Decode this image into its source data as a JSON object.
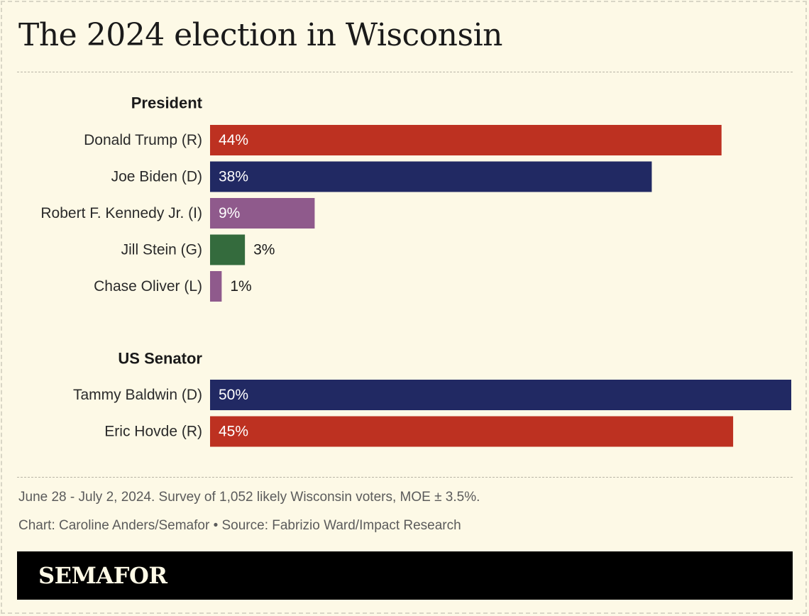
{
  "title": "The 2024 election in Wisconsin",
  "chart_data": {
    "type": "bar",
    "orientation": "horizontal",
    "unit": "%",
    "xlim": [
      0,
      50
    ],
    "grid": false,
    "groups": [
      {
        "heading": "President",
        "bars": [
          {
            "label": "Donald Trump (R)",
            "value": 44,
            "display": "44%",
            "color": "#bd3121"
          },
          {
            "label": "Joe Biden (D)",
            "value": 38,
            "display": "38%",
            "color": "#212963"
          },
          {
            "label": "Robert F. Kennedy Jr. (I)",
            "value": 9,
            "display": "9%",
            "color": "#8f5a8c"
          },
          {
            "label": "Jill Stein (G)",
            "value": 3,
            "display": "3%",
            "color": "#346b3d"
          },
          {
            "label": "Chase Oliver (L)",
            "value": 1,
            "display": "1%",
            "color": "#8f5a8c"
          }
        ]
      },
      {
        "heading": "US Senator",
        "bars": [
          {
            "label": "Tammy Baldwin (D)",
            "value": 50,
            "display": "50%",
            "color": "#212963"
          },
          {
            "label": "Eric Hovde (R)",
            "value": 45,
            "display": "45%",
            "color": "#bd3121"
          }
        ]
      }
    ]
  },
  "notes": {
    "survey": "June 28 - July 2, 2024. Survey of 1,052 likely Wisconsin voters, MOE ± 3.5%.",
    "credit": "Chart: Caroline Anders/Semafor • Source: Fabrizio Ward/Impact Research"
  },
  "brand": {
    "logo": "SEMAFOR"
  }
}
